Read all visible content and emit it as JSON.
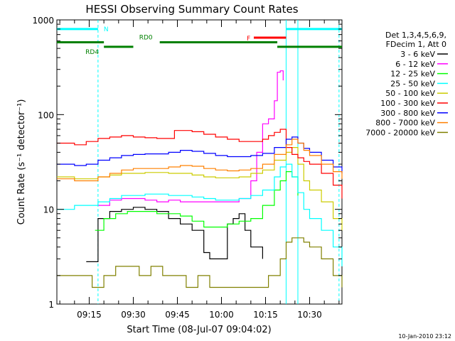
{
  "chart_data": {
    "type": "line",
    "title": "HESSI Observing Summary Count Rates",
    "xlabel": "Start Time (08-Jul-07 09:04:02)",
    "ylabel": "Count Rate (s⁻¹ detector⁻¹)",
    "y_scale": "log",
    "ylim": [
      1,
      1000
    ],
    "xlim": [
      "09:04",
      "10:41"
    ],
    "x_ticks": [
      "09:15",
      "09:30",
      "09:45",
      "10:00",
      "10:15",
      "10:30"
    ],
    "y_ticks": [
      "1",
      "10",
      "100",
      "1000"
    ],
    "legend_position": "right",
    "legend_header": [
      "Det 1,3,4,5,6,9,",
      "FDecim 1, Att 0"
    ],
    "footer_date": "10-Jan-2010 23:12",
    "series": [
      {
        "name": "3 - 6 keV",
        "color": "#000000",
        "x": [
          "09:04",
          "09:10",
          "09:12",
          "09:14",
          "09:18",
          "09:22",
          "09:26",
          "09:30",
          "09:34",
          "09:38",
          "09:42",
          "09:46",
          "09:50",
          "09:54",
          "09:56",
          "09:58",
          "10:02",
          "10:04",
          "10:06",
          "10:08",
          "10:10",
          "10:14",
          "10:18",
          "10:22",
          "10:26",
          "10:30",
          "10:34",
          "10:38",
          "10:41"
        ],
        "y": [
          null,
          null,
          null,
          2.8,
          8,
          9.5,
          10,
          10.5,
          10,
          9.5,
          8,
          7,
          6,
          3.5,
          3,
          3,
          7,
          8,
          9,
          6,
          4,
          3,
          null,
          null,
          null,
          null,
          null,
          null,
          null
        ]
      },
      {
        "name": "6 - 12 keV",
        "color": "#ff00ff",
        "x": [
          "09:04",
          "09:10",
          "09:18",
          "09:22",
          "09:26",
          "09:30",
          "09:34",
          "09:38",
          "09:42",
          "09:46",
          "09:50",
          "09:54",
          "09:58",
          "10:02",
          "10:06",
          "10:10",
          "10:12",
          "10:14",
          "10:16",
          "10:18",
          "10:19",
          "10:20",
          "10:21"
        ],
        "y": [
          null,
          null,
          11,
          12.5,
          13,
          13,
          12.5,
          12,
          12.5,
          12,
          12,
          12,
          12,
          12,
          13,
          20,
          40,
          80,
          90,
          140,
          280,
          290,
          230
        ]
      },
      {
        "name": "12 - 25 keV",
        "color": "#00ff00",
        "x": [
          "09:04",
          "09:10",
          "09:14",
          "09:17",
          "09:20",
          "09:24",
          "09:28",
          "09:30",
          "09:34",
          "09:38",
          "09:42",
          "09:46",
          "09:50",
          "09:54",
          "09:58",
          "10:02",
          "10:06",
          "10:10",
          "10:14",
          "10:18",
          "10:20",
          "10:22",
          "10:24",
          "10:26",
          "10:28",
          "10:30"
        ],
        "y": [
          null,
          null,
          null,
          6,
          8,
          9,
          9.5,
          9.5,
          9.5,
          9,
          9,
          8.5,
          7.5,
          6.5,
          6.5,
          7,
          7.5,
          8,
          11,
          16,
          20,
          25,
          22,
          14,
          null,
          null
        ]
      },
      {
        "name": "25 - 50 keV",
        "color": "#00ffff",
        "x": [
          "09:04",
          "09:10",
          "09:14",
          "09:18",
          "09:22",
          "09:26",
          "09:30",
          "09:34",
          "09:38",
          "09:42",
          "09:46",
          "09:50",
          "09:54",
          "09:58",
          "10:02",
          "10:06",
          "10:10",
          "10:14",
          "10:18",
          "10:20",
          "10:22",
          "10:24",
          "10:26",
          "10:28",
          "10:30",
          "10:34",
          "10:38",
          "10:41"
        ],
        "y": [
          10,
          11,
          11,
          12,
          13,
          14,
          14,
          14.5,
          14.5,
          14,
          14,
          13.5,
          13,
          12.5,
          12.5,
          13,
          14,
          16,
          22,
          28,
          30,
          22,
          15,
          10,
          8,
          6,
          4,
          2.5
        ]
      },
      {
        "name": "50 - 100 keV",
        "color": "#cccc00",
        "x": [
          "09:04",
          "09:10",
          "09:14",
          "09:18",
          "09:22",
          "09:26",
          "09:30",
          "09:34",
          "09:38",
          "09:42",
          "09:46",
          "09:50",
          "09:54",
          "09:58",
          "10:02",
          "10:06",
          "10:10",
          "10:14",
          "10:18",
          "10:22",
          "10:24",
          "10:26",
          "10:28",
          "10:30",
          "10:34",
          "10:38",
          "10:41"
        ],
        "y": [
          22,
          21,
          21,
          22,
          23,
          24,
          24,
          24.5,
          24.5,
          24,
          24,
          23,
          22,
          21.5,
          21.5,
          22,
          24,
          26,
          33,
          40,
          45,
          30,
          20,
          16,
          12,
          8,
          6
        ]
      },
      {
        "name": "100 - 300 keV",
        "color": "#ff0000",
        "x": [
          "09:04",
          "09:10",
          "09:14",
          "09:18",
          "09:22",
          "09:26",
          "09:30",
          "09:34",
          "09:38",
          "09:42",
          "09:44",
          "09:46",
          "09:50",
          "09:54",
          "09:58",
          "10:02",
          "10:06",
          "10:10",
          "10:14",
          "10:16",
          "10:18",
          "10:20",
          "10:22",
          "10:24",
          "10:26",
          "10:28",
          "10:30",
          "10:34",
          "10:38",
          "10:41"
        ],
        "y": [
          50,
          48,
          52,
          56,
          58,
          60,
          58,
          57,
          56,
          56,
          68,
          68,
          66,
          62,
          58,
          55,
          52,
          52,
          55,
          60,
          65,
          70,
          45,
          38,
          35,
          32,
          30,
          24,
          18,
          13
        ]
      },
      {
        "name": "300 - 800 keV",
        "color": "#0000ff",
        "x": [
          "09:04",
          "09:10",
          "09:14",
          "09:18",
          "09:22",
          "09:26",
          "09:30",
          "09:34",
          "09:38",
          "09:42",
          "09:46",
          "09:50",
          "09:54",
          "09:58",
          "10:02",
          "10:06",
          "10:10",
          "10:14",
          "10:18",
          "10:22",
          "10:24",
          "10:26",
          "10:28",
          "10:30",
          "10:34",
          "10:38",
          "10:41"
        ],
        "y": [
          30,
          29,
          30,
          33,
          35,
          37,
          38,
          38.5,
          38.5,
          40,
          42,
          41,
          39,
          37,
          36,
          36,
          37,
          39,
          45,
          55,
          58,
          50,
          44,
          40,
          33,
          28,
          24
        ]
      },
      {
        "name": "800 - 7000 keV",
        "color": "#ff8000",
        "x": [
          "09:04",
          "09:10",
          "09:14",
          "09:18",
          "09:22",
          "09:26",
          "09:30",
          "09:34",
          "09:38",
          "09:42",
          "09:46",
          "09:50",
          "09:54",
          "09:58",
          "10:02",
          "10:06",
          "10:10",
          "10:14",
          "10:18",
          "10:22",
          "10:24",
          "10:26",
          "10:28",
          "10:30",
          "10:34",
          "10:38",
          "10:41"
        ],
        "y": [
          21,
          20,
          20,
          22,
          24,
          26,
          27,
          27,
          27,
          28,
          29,
          28.5,
          27,
          26,
          25.5,
          26,
          27,
          30,
          38,
          48,
          55,
          50,
          42,
          37,
          30,
          25,
          21
        ]
      },
      {
        "name": "7000 - 20000 keV",
        "color": "#808000",
        "x": [
          "09:04",
          "09:10",
          "09:16",
          "09:20",
          "09:24",
          "09:28",
          "09:32",
          "09:36",
          "09:40",
          "09:44",
          "09:48",
          "09:52",
          "09:56",
          "10:00",
          "10:04",
          "10:08",
          "10:12",
          "10:16",
          "10:20",
          "10:22",
          "10:24",
          "10:26",
          "10:28",
          "10:30",
          "10:34",
          "10:38",
          "10:41"
        ],
        "y": [
          2,
          2,
          1.5,
          2,
          2.5,
          2.5,
          2,
          2.5,
          2,
          2,
          1.5,
          2,
          1.5,
          1.5,
          1.5,
          1.5,
          1.5,
          2,
          3,
          4.5,
          5,
          5,
          4.5,
          4,
          3,
          2,
          1.5
        ]
      }
    ],
    "annotations": [
      {
        "label": "N",
        "color": "#00ffff"
      },
      {
        "label": "RD0",
        "color": "#008000"
      },
      {
        "label": "RD4",
        "color": "#008000"
      },
      {
        "label": "F",
        "color": "#ff0000"
      }
    ],
    "status_bars": [
      {
        "name": "night",
        "color": "#00ffff",
        "level": 800,
        "spans": [
          [
            "09:04",
            "09:18"
          ],
          [
            "10:22",
            "10:41"
          ]
        ]
      },
      {
        "name": "flare",
        "color": "#ff0000",
        "level": 650,
        "spans": [
          [
            "10:11",
            "10:22"
          ]
        ]
      },
      {
        "name": "rd0",
        "color": "#008000",
        "level": 580,
        "spans": [
          [
            "09:04",
            "09:20"
          ],
          [
            "09:39",
            "10:19"
          ]
        ]
      },
      {
        "name": "rd4",
        "color": "#008000",
        "level": 520,
        "spans": [
          [
            "09:20",
            "09:30"
          ],
          [
            "10:19",
            "10:41"
          ]
        ]
      }
    ],
    "vlines_solid": [
      "10:22",
      "10:26"
    ],
    "vlines_dashed": [
      "09:18",
      "10:40"
    ]
  }
}
